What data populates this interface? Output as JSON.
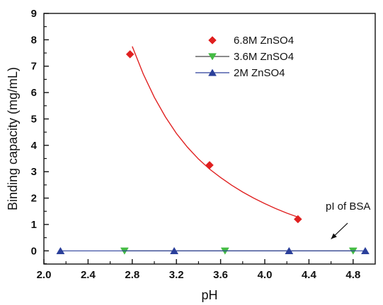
{
  "chart_data": {
    "type": "scatter",
    "xlabel": "pH",
    "ylabel": "Binding capacity (mg/mL)",
    "xlim": [
      2.0,
      5.0
    ],
    "ylim": [
      -0.5,
      9
    ],
    "x_ticks": [
      "2.0",
      "2.4",
      "2.8",
      "3.2",
      "3.6",
      "4.0",
      "4.4",
      "4.8"
    ],
    "x_tick_values": [
      2.0,
      2.4,
      2.8,
      3.2,
      3.6,
      4.0,
      4.4,
      4.8
    ],
    "y_ticks": [
      "0",
      "1",
      "2",
      "3",
      "4",
      "5",
      "6",
      "7",
      "8",
      "9"
    ],
    "y_tick_values": [
      0,
      1,
      2,
      3,
      4,
      5,
      6,
      7,
      8,
      9
    ],
    "grid": false,
    "legend_position": "top-right",
    "series": [
      {
        "name": "6.8M ZnSO4",
        "marker": "diamond",
        "color": "#e02020",
        "x": [
          2.78,
          3.5,
          4.3
        ],
        "y": [
          7.45,
          3.25,
          1.2
        ],
        "fit_line": {
          "color": "#e02020",
          "x": [
            2.8,
            2.9,
            3.0,
            3.1,
            3.2,
            3.3,
            3.4,
            3.5,
            3.6,
            3.7,
            3.8,
            3.9,
            4.0,
            4.1,
            4.2,
            4.3
          ],
          "y": [
            7.75,
            6.7,
            5.82,
            5.08,
            4.45,
            3.93,
            3.48,
            3.1,
            2.78,
            2.49,
            2.23,
            2.0,
            1.79,
            1.6,
            1.43,
            1.28
          ]
        }
      },
      {
        "name": "3.6M ZnSO4",
        "marker": "triangle-down",
        "color": "#44bb44",
        "line_color": "#444444",
        "x": [
          2.73,
          3.64,
          4.8
        ],
        "y": [
          0,
          0,
          0
        ]
      },
      {
        "name": "2M ZnSO4",
        "marker": "triangle-up",
        "color": "#2a3f9a",
        "line_color": "#2a3f9a",
        "x": [
          2.15,
          3.18,
          4.22,
          4.91
        ],
        "y": [
          0,
          0,
          0,
          0
        ]
      }
    ],
    "annotations": [
      {
        "text": "pI of BSA",
        "arrow_from": [
          4.75,
          1.05
        ],
        "arrow_to": [
          4.6,
          0.45
        ]
      }
    ]
  }
}
